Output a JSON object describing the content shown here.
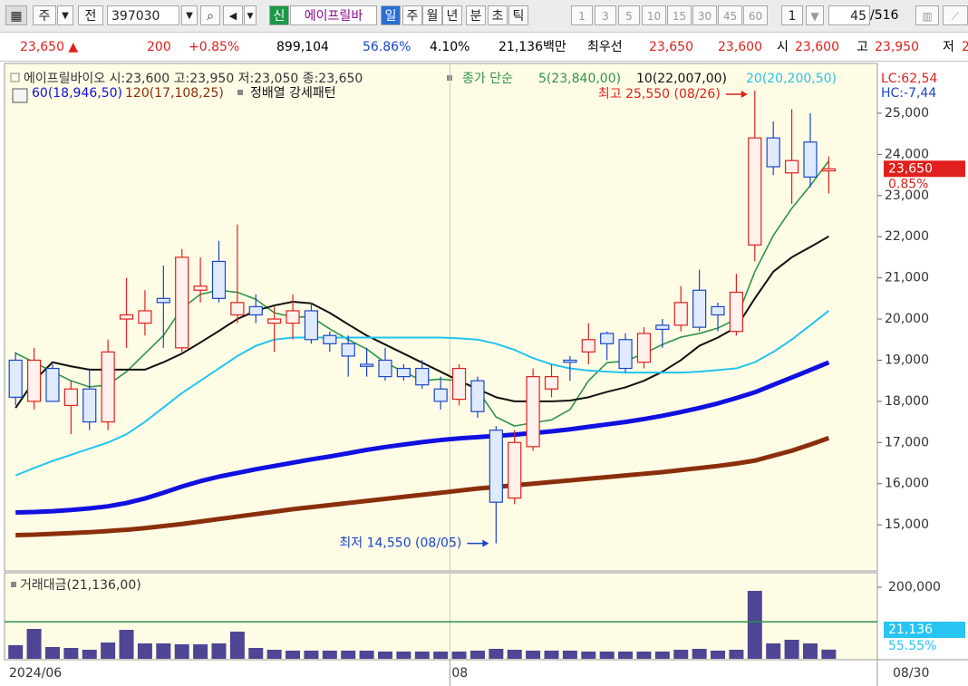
{
  "toolbar": {
    "period_btn": "주",
    "prev_btn": "전",
    "code": "397030",
    "new_badge": "신",
    "stock_name": "에이프릴바",
    "intervals": [
      "일",
      "주",
      "월",
      "년",
      "분",
      "초",
      "틱"
    ],
    "minutes": [
      "1",
      "3",
      "5",
      "10",
      "15",
      "30",
      "45",
      "60"
    ],
    "multiplier": "1",
    "count": "45",
    "total": "/516"
  },
  "quote": {
    "price": "23,650 ▲",
    "change": "200",
    "change_pct": "+0.85%",
    "volume": "899,104",
    "ratio1": "56.86%",
    "ratio2": "4.10%",
    "amount": "21,136백만",
    "best_label": "최우선",
    "ask": "23,650",
    "bid": "23,600",
    "open_label": "시",
    "open": "23,600",
    "high_label": "고",
    "high": "23,950",
    "low_label": "저",
    "low_cut": "2"
  },
  "chart_data": [
    {
      "type": "candlestick",
      "title": "에이프릴바이오 시:23,600 고:23,950 저:23,050 종:23,650",
      "ma_label": "종가 단순",
      "pattern_label": "정배열 강세패턴",
      "lc": "LC:62,54",
      "hc": "HC:-7,44",
      "last_date": "08/30",
      "categories": [
        "2024/06",
        null,
        null,
        null,
        null,
        null,
        null,
        null,
        null,
        null,
        null,
        null,
        null,
        null,
        null,
        null,
        null,
        null,
        null,
        null,
        null,
        null,
        null,
        null,
        "08",
        null,
        null,
        null,
        null,
        null,
        null,
        null,
        null,
        null,
        null,
        null,
        null,
        null,
        null,
        null,
        null,
        null,
        null,
        null,
        null
      ],
      "open": [
        19000,
        18000,
        18800,
        17900,
        18300,
        17500,
        20000,
        19900,
        20500,
        19300,
        20700,
        21400,
        20100,
        20300,
        19900,
        19900,
        20200,
        19600,
        19400,
        18900,
        19000,
        18800,
        18800,
        18300,
        18050,
        18500,
        17300,
        15650,
        16900,
        18300,
        19000,
        19200,
        19650,
        19500,
        18950,
        19850,
        19850,
        20700,
        20300,
        19700,
        21800,
        24400,
        23550,
        24300,
        23600
      ],
      "high": [
        19200,
        19300,
        18900,
        18500,
        18800,
        19500,
        21000,
        20700,
        21300,
        21700,
        21500,
        21900,
        22300,
        20600,
        20300,
        20600,
        20400,
        19700,
        19600,
        19300,
        19300,
        18900,
        19000,
        18600,
        18900,
        18600,
        17400,
        17300,
        18800,
        18900,
        19100,
        19900,
        19700,
        19650,
        19800,
        20000,
        20800,
        21200,
        20400,
        21100,
        25550,
        24800,
        25100,
        25000,
        23950
      ],
      "low": [
        17900,
        17800,
        18000,
        17200,
        17300,
        17300,
        19300,
        19600,
        19300,
        19200,
        20400,
        20400,
        19900,
        19900,
        19200,
        19500,
        19400,
        19200,
        18600,
        18600,
        18500,
        18500,
        18300,
        17800,
        17900,
        17600,
        14550,
        15500,
        16800,
        18100,
        18500,
        18900,
        19000,
        18700,
        18800,
        19300,
        19700,
        19700,
        19700,
        19600,
        21400,
        23500,
        22800,
        23200,
        23050
      ],
      "close": [
        18100,
        19000,
        18000,
        18300,
        17500,
        19200,
        20100,
        20200,
        20400,
        21500,
        20800,
        20500,
        20400,
        20100,
        20000,
        20200,
        19500,
        19400,
        19100,
        18850,
        18600,
        18600,
        18400,
        18000,
        18800,
        17750,
        15550,
        17000,
        18600,
        18600,
        18950,
        19500,
        19400,
        18800,
        19650,
        19750,
        20400,
        19800,
        20100,
        20650,
        24400,
        23700,
        23850,
        23450,
        23650
      ],
      "up_color": "#e0201c",
      "down_color": "#1846c8",
      "series": [
        {
          "name": "5(23,840,00)",
          "color": "#2e9448",
          "line_width": 1.6,
          "values": [
            19170,
            18950,
            18720,
            18500,
            18350,
            18400,
            18720,
            19160,
            19600,
            20260,
            20600,
            20700,
            20650,
            20480,
            20150,
            20050,
            20050,
            19760,
            19500,
            19270,
            18940,
            18720,
            18500,
            18540,
            18500,
            18280,
            17620,
            17400,
            17480,
            17550,
            17800,
            18500,
            18940,
            18980,
            19160,
            19380,
            19560,
            19650,
            19780,
            20000,
            21150,
            22030,
            22690,
            23240,
            23840
          ]
        },
        {
          "name": "10(22,007,00)",
          "color": "#111111",
          "line_width": 2,
          "values": [
            17840,
            18500,
            18950,
            18850,
            18770,
            18770,
            18770,
            18770,
            18950,
            19160,
            19430,
            19710,
            20000,
            20200,
            20330,
            20420,
            20380,
            20150,
            19870,
            19600,
            19380,
            19160,
            18940,
            18720,
            18500,
            18300,
            18100,
            18000,
            18000,
            18000,
            18020,
            18100,
            18230,
            18340,
            18500,
            18720,
            19000,
            19350,
            19550,
            19800,
            20500,
            21150,
            21500,
            21750,
            22007
          ]
        },
        {
          "name": "20(20,200,50)",
          "color": "#22c4ee",
          "line_width": 2,
          "values": [
            16200,
            16380,
            16550,
            16700,
            16850,
            17000,
            17200,
            17500,
            17850,
            18200,
            18500,
            18800,
            19100,
            19350,
            19500,
            19550,
            19550,
            19550,
            19550,
            19550,
            19550,
            19550,
            19550,
            19550,
            19530,
            19500,
            19400,
            19250,
            19050,
            18900,
            18800,
            18750,
            18720,
            18700,
            18700,
            18700,
            18700,
            18720,
            18760,
            18800,
            18950,
            19200,
            19500,
            19850,
            20200
          ]
        },
        {
          "name": "60(18,946,50)",
          "color": "#1010e0",
          "line_width": 5,
          "values": [
            15300,
            15310,
            15330,
            15360,
            15400,
            15450,
            15530,
            15640,
            15780,
            15930,
            16060,
            16170,
            16260,
            16350,
            16430,
            16510,
            16590,
            16660,
            16740,
            16820,
            16890,
            16950,
            17010,
            17060,
            17100,
            17130,
            17160,
            17190,
            17230,
            17270,
            17320,
            17380,
            17440,
            17500,
            17570,
            17650,
            17740,
            17840,
            17950,
            18080,
            18220,
            18400,
            18580,
            18760,
            18946
          ]
        },
        {
          "name": "120(17,108,25)",
          "color": "#8b2e0c",
          "line_width": 5,
          "values": [
            14750,
            14760,
            14780,
            14800,
            14820,
            14850,
            14880,
            14920,
            14970,
            15020,
            15080,
            15140,
            15200,
            15260,
            15320,
            15380,
            15430,
            15480,
            15530,
            15580,
            15630,
            15680,
            15730,
            15780,
            15830,
            15880,
            15920,
            15960,
            16000,
            16040,
            16080,
            16120,
            16160,
            16200,
            16240,
            16280,
            16330,
            16380,
            16430,
            16490,
            16560,
            16680,
            16800,
            16950,
            17108
          ]
        }
      ],
      "annotations": [
        {
          "text": "최고 25,550 (08/26)",
          "index": 40,
          "value": 25550,
          "color": "#e0201c"
        },
        {
          "text": "최저 14,550 (08/05)",
          "index": 26,
          "value": 14550,
          "color": "#1846c8"
        }
      ],
      "last_label": "23,650",
      "last_change": "0.85%",
      "ylim": [
        13880,
        26100
      ],
      "yticks": [
        {
          "value": 15000,
          "label": "15,000"
        },
        {
          "value": 16000,
          "label": "16,000"
        },
        {
          "value": 17000,
          "label": "17,000"
        },
        {
          "value": 18000,
          "label": "18,000"
        },
        {
          "value": 19000,
          "label": "19,000"
        },
        {
          "value": 20000,
          "label": "20,000"
        },
        {
          "value": 21000,
          "label": "21,000"
        },
        {
          "value": 22000,
          "label": "22,000"
        },
        {
          "value": 23000,
          "label": "23,000"
        },
        {
          "value": 24000,
          "label": "24,000"
        },
        {
          "value": 25000,
          "label": "25,000"
        }
      ]
    },
    {
      "type": "bar",
      "title": "거래대금(21,136,00)",
      "color": "#4e4594",
      "values": [
        33800,
        80500,
        28600,
        26000,
        20800,
        41600,
        77900,
        39000,
        39000,
        36400,
        36400,
        39000,
        72700,
        26000,
        20800,
        18200,
        18200,
        18200,
        18200,
        18200,
        15600,
        15600,
        15600,
        15600,
        15600,
        18200,
        23400,
        20800,
        18200,
        18200,
        18200,
        15600,
        15600,
        15600,
        15600,
        15600,
        20800,
        23400,
        18200,
        20800,
        189600,
        39000,
        49400,
        39000,
        21136
      ],
      "ref_line": 101000,
      "ref_color": "#2e9448",
      "last_label": "21,136",
      "last_pct": "55.55%",
      "ylim": [
        0,
        239000
      ],
      "yticks": [
        {
          "value": 200000,
          "label": "200,000"
        }
      ]
    }
  ]
}
